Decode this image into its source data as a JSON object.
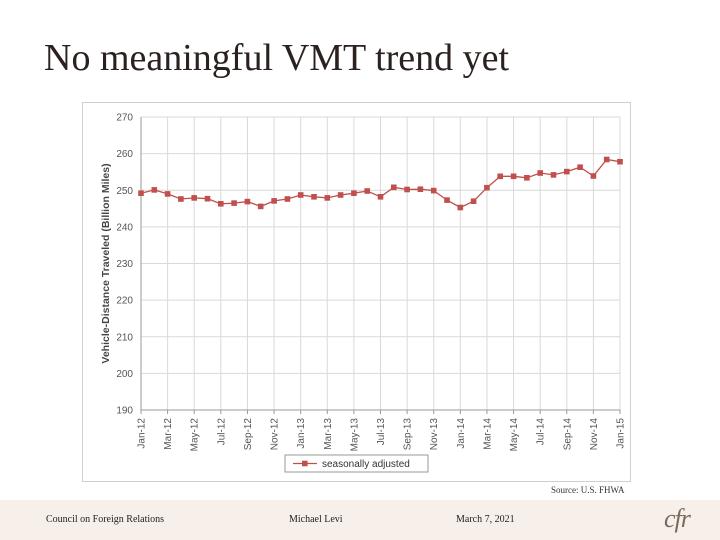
{
  "slide": {
    "title": "No meaningful VMT trend yet",
    "source": "Source: U.S. FHWA"
  },
  "footer": {
    "organization": "Council on Foreign Relations",
    "author": "Michael Levi",
    "date": "March 7, 2021",
    "logo_text": "cfr"
  },
  "chart_data": {
    "type": "line",
    "title": "",
    "xlabel": "",
    "ylabel": "Vehicle-Distance Traveled (Billion Miles)",
    "ylim": [
      190,
      270
    ],
    "yticks": [
      190,
      200,
      210,
      220,
      230,
      240,
      250,
      260,
      270
    ],
    "grid": true,
    "legend": "bottom",
    "tick_labels": [
      "Jan-12",
      "Mar-12",
      "May-12",
      "Jul-12",
      "Sep-12",
      "Nov-12",
      "Jan-13",
      "Mar-13",
      "May-13",
      "Jul-13",
      "Sep-13",
      "Nov-13",
      "Jan-14",
      "Mar-14",
      "May-14",
      "Jul-14",
      "Sep-14",
      "Nov-14",
      "Jan-15"
    ],
    "x": [
      "Jan-12",
      "Feb-12",
      "Mar-12",
      "Apr-12",
      "May-12",
      "Jun-12",
      "Jul-12",
      "Aug-12",
      "Sep-12",
      "Oct-12",
      "Nov-12",
      "Dec-12",
      "Jan-13",
      "Feb-13",
      "Mar-13",
      "Apr-13",
      "May-13",
      "Jun-13",
      "Jul-13",
      "Aug-13",
      "Sep-13",
      "Oct-13",
      "Nov-13",
      "Dec-13",
      "Jan-14",
      "Feb-14",
      "Mar-14",
      "Apr-14",
      "May-14",
      "Jun-14",
      "Jul-14",
      "Aug-14",
      "Sep-14",
      "Oct-14",
      "Nov-14",
      "Dec-14",
      "Jan-15"
    ],
    "series": [
      {
        "name": "seasonally adjusted",
        "color": "#c0504d",
        "values": [
          249.2,
          250.1,
          249.0,
          247.6,
          247.9,
          247.7,
          246.3,
          246.5,
          246.9,
          245.6,
          247.1,
          247.6,
          248.7,
          248.2,
          247.9,
          248.7,
          249.2,
          249.8,
          248.2,
          250.8,
          250.2,
          250.3,
          249.9,
          247.3,
          245.3,
          247.0,
          250.7,
          253.8,
          253.8,
          253.4,
          254.7,
          254.2,
          255.1,
          256.3,
          253.9,
          258.4,
          257.8
        ]
      }
    ]
  }
}
